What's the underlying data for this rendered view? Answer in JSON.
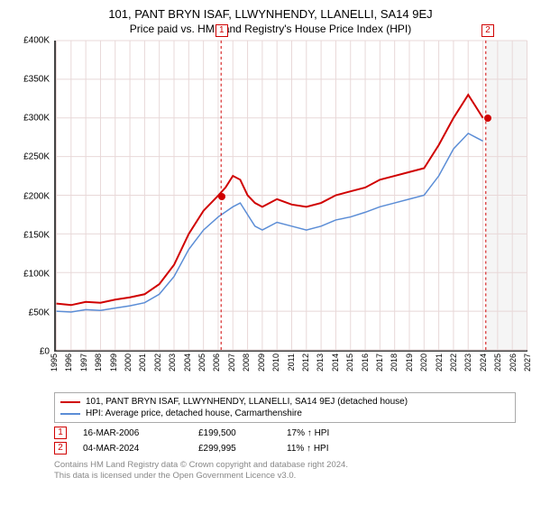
{
  "title": "101, PANT BRYN ISAF, LLWYNHENDY, LLANELLI, SA14 9EJ",
  "subtitle": "Price paid vs. HM Land Registry's House Price Index (HPI)",
  "chart": {
    "type": "line",
    "xlim": [
      1995,
      2027
    ],
    "ylim": [
      0,
      400000
    ],
    "ytick_step": 50000,
    "y_labels": [
      "£0",
      "£50K",
      "£100K",
      "£150K",
      "£200K",
      "£250K",
      "£300K",
      "£350K",
      "£400K"
    ],
    "x_labels": [
      "1995",
      "1996",
      "1997",
      "1998",
      "1999",
      "2000",
      "2001",
      "2002",
      "2003",
      "2004",
      "2005",
      "2006",
      "2007",
      "2008",
      "2009",
      "2010",
      "2011",
      "2012",
      "2013",
      "2014",
      "2015",
      "2016",
      "2017",
      "2018",
      "2019",
      "2020",
      "2021",
      "2022",
      "2023",
      "2024",
      "2025",
      "2026",
      "2027"
    ],
    "grid_color": "#e8d8d8",
    "background_color": "#ffffff",
    "shade_color": "#f5f5f5",
    "shade_from_year": 2024.2,
    "series": [
      {
        "name": "property",
        "label": "101, PANT BRYN ISAF, LLWYNHENDY, LLANELLI, SA14 9EJ (detached house)",
        "color": "#d00000",
        "stroke_width": 2,
        "data": [
          [
            1995,
            60000
          ],
          [
            1996,
            58000
          ],
          [
            1997,
            62000
          ],
          [
            1998,
            61000
          ],
          [
            1999,
            65000
          ],
          [
            2000,
            68000
          ],
          [
            2001,
            72000
          ],
          [
            2002,
            85000
          ],
          [
            2003,
            110000
          ],
          [
            2004,
            150000
          ],
          [
            2005,
            180000
          ],
          [
            2006,
            199500
          ],
          [
            2006.5,
            210000
          ],
          [
            2007,
            225000
          ],
          [
            2007.5,
            220000
          ],
          [
            2008,
            200000
          ],
          [
            2008.5,
            190000
          ],
          [
            2009,
            185000
          ],
          [
            2010,
            195000
          ],
          [
            2011,
            188000
          ],
          [
            2012,
            185000
          ],
          [
            2013,
            190000
          ],
          [
            2014,
            200000
          ],
          [
            2015,
            205000
          ],
          [
            2016,
            210000
          ],
          [
            2017,
            220000
          ],
          [
            2018,
            225000
          ],
          [
            2019,
            230000
          ],
          [
            2020,
            235000
          ],
          [
            2021,
            265000
          ],
          [
            2022,
            300000
          ],
          [
            2023,
            330000
          ],
          [
            2023.5,
            315000
          ],
          [
            2024,
            300000
          ]
        ]
      },
      {
        "name": "hpi",
        "label": "HPI: Average price, detached house, Carmarthenshire",
        "color": "#5b8dd6",
        "stroke_width": 1.5,
        "data": [
          [
            1995,
            50000
          ],
          [
            1996,
            49000
          ],
          [
            1997,
            52000
          ],
          [
            1998,
            51000
          ],
          [
            1999,
            54000
          ],
          [
            2000,
            57000
          ],
          [
            2001,
            61000
          ],
          [
            2002,
            72000
          ],
          [
            2003,
            95000
          ],
          [
            2004,
            130000
          ],
          [
            2005,
            155000
          ],
          [
            2006,
            172000
          ],
          [
            2007,
            185000
          ],
          [
            2007.5,
            190000
          ],
          [
            2008,
            175000
          ],
          [
            2008.5,
            160000
          ],
          [
            2009,
            155000
          ],
          [
            2010,
            165000
          ],
          [
            2011,
            160000
          ],
          [
            2012,
            155000
          ],
          [
            2013,
            160000
          ],
          [
            2014,
            168000
          ],
          [
            2015,
            172000
          ],
          [
            2016,
            178000
          ],
          [
            2017,
            185000
          ],
          [
            2018,
            190000
          ],
          [
            2019,
            195000
          ],
          [
            2020,
            200000
          ],
          [
            2021,
            225000
          ],
          [
            2022,
            260000
          ],
          [
            2023,
            280000
          ],
          [
            2023.5,
            275000
          ],
          [
            2024,
            270000
          ]
        ]
      }
    ],
    "markers": [
      {
        "id": "1",
        "year": 2006.2,
        "price": 199500
      },
      {
        "id": "2",
        "year": 2024.2,
        "price": 299995
      }
    ]
  },
  "legend": {
    "items": [
      {
        "color": "#d00000",
        "label_key": "chart.series.0.label"
      },
      {
        "color": "#5b8dd6",
        "label_key": "chart.series.1.label"
      }
    ]
  },
  "sales": [
    {
      "id": "1",
      "date": "16-MAR-2006",
      "price": "£199,500",
      "pct": "17% ↑ HPI"
    },
    {
      "id": "2",
      "date": "04-MAR-2024",
      "price": "£299,995",
      "pct": "11% ↑ HPI"
    }
  ],
  "footer": {
    "line1": "Contains HM Land Registry data © Crown copyright and database right 2024.",
    "line2": "This data is licensed under the Open Government Licence v3.0."
  }
}
